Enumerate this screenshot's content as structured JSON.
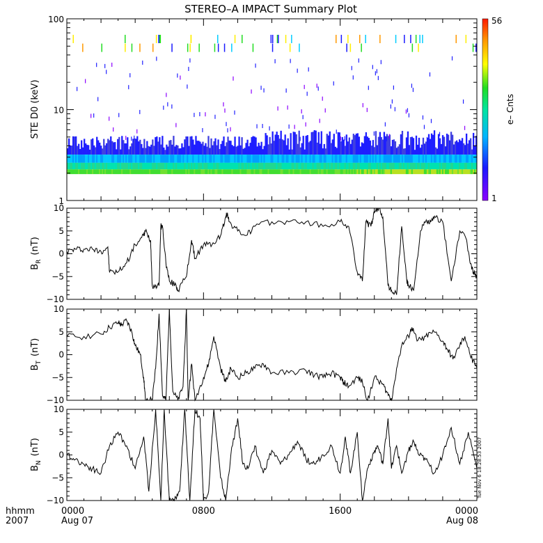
{
  "chart_data": [
    {
      "type": "heatmap",
      "title": "STEREO–A IMPACT Summary Plot",
      "ylabel": "STE D0 (keV)",
      "yscale": "log",
      "ylim": [
        1,
        100
      ],
      "yticks": [
        "1",
        "10",
        "100"
      ],
      "xlim_hours": [
        0,
        24
      ],
      "colorbar": {
        "label": "e– Cnts",
        "min": "1",
        "max": "56"
      },
      "description_levels": {
        "band_low_kev": 1.95,
        "band_high_kev": 5.5,
        "sporadic_high_kev": [
          45,
          60
        ]
      }
    },
    {
      "type": "line",
      "ylabel_main": "B",
      "ylabel_sub": "R",
      "ylabel_unit": "(nT)",
      "ylim": [
        -10,
        10
      ],
      "yticks": [
        "10",
        "5",
        "0",
        "−5",
        "−10"
      ],
      "x": [
        0,
        0.5,
        1,
        1.5,
        2,
        2.4,
        2.5,
        3,
        3.5,
        4,
        4.5,
        4.6,
        4.9,
        5,
        5.4,
        5.5,
        5.6,
        5.8,
        6,
        6.4,
        6.5,
        7,
        7.3,
        7.5,
        8,
        8.5,
        9,
        9.3,
        9.4,
        9.5,
        10,
        10.5,
        11,
        12,
        13,
        14,
        15,
        16,
        16.5,
        17,
        17.3,
        17.5,
        17.8,
        18,
        18.3,
        18.5,
        18.8,
        19,
        19.3,
        19.6,
        19.9,
        20,
        20.3,
        20.7,
        21,
        21.3,
        21.6,
        22,
        22.5,
        23,
        23.4,
        23.6,
        23.8,
        24
      ],
      "y": [
        0.5,
        1,
        1,
        1,
        0.5,
        1.5,
        -4,
        -4,
        -2,
        2,
        4,
        5,
        3,
        -7,
        -7,
        6,
        6,
        -2,
        -6,
        -7,
        -8,
        -5,
        3,
        -1,
        2,
        2,
        4,
        8,
        9,
        7,
        5,
        4,
        6,
        7,
        7,
        7,
        6,
        7,
        6,
        -4,
        -6,
        7,
        6,
        9,
        10,
        8,
        -7,
        -8,
        -9,
        6,
        -6,
        -7,
        -8,
        5,
        7,
        7,
        8,
        7,
        -6,
        5,
        3,
        -2,
        -4,
        -5
      ]
    },
    {
      "type": "line",
      "ylabel_main": "B",
      "ylabel_sub": "T",
      "ylabel_unit": "(nT)",
      "ylim": [
        -10,
        10
      ],
      "yticks": [
        "10",
        "5",
        "0",
        "−5",
        "−10"
      ],
      "x": [
        0,
        1,
        2,
        2.5,
        3,
        3.2,
        3.5,
        3.8,
        4,
        4.3,
        4.5,
        4.6,
        5,
        5.2,
        5.4,
        5.6,
        5.8,
        6,
        6.2,
        6.5,
        6.8,
        7,
        7.1,
        7.3,
        7.5,
        8,
        8.3,
        8.6,
        9,
        9.3,
        9.6,
        10,
        10.5,
        11,
        11.5,
        12,
        13,
        14,
        14.5,
        15,
        15.5,
        16,
        16.2,
        16.5,
        17,
        17.3,
        17.6,
        18,
        18.4,
        18.7,
        19,
        19.3,
        19.6,
        20,
        20.2,
        20.5,
        21,
        21.5,
        22,
        22.3,
        22.6,
        23,
        23.3,
        23.6,
        24
      ],
      "y": [
        4,
        4,
        4.5,
        6,
        7,
        6.5,
        7.5,
        5,
        2,
        0,
        -5,
        -10,
        -10,
        -3,
        9,
        -9,
        -10,
        10,
        -8,
        -10,
        -7,
        10,
        -10,
        -2,
        -10,
        -5,
        -2,
        4,
        -3,
        -6,
        -3,
        -5,
        -4,
        -3,
        -2,
        -4,
        -4,
        -3.5,
        -4.5,
        -5,
        -4,
        -5,
        -6,
        -7,
        -5,
        -6,
        -10,
        -5,
        -6,
        -8,
        -10,
        -3,
        2,
        4,
        6,
        3,
        4,
        5,
        3,
        1,
        -1,
        2,
        4,
        0,
        -3
      ]
    },
    {
      "type": "line",
      "ylabel_main": "B",
      "ylabel_sub": "N",
      "ylabel_unit": "(nT)",
      "ylim": [
        -10,
        10
      ],
      "yticks": [
        "10",
        "5",
        "0",
        "−5",
        "−10"
      ],
      "x": [
        0,
        0.5,
        1,
        1.5,
        2,
        2.5,
        3,
        3.5,
        4,
        4.5,
        4.8,
        5.2,
        5.5,
        5.7,
        6,
        6.3,
        6.6,
        6.9,
        7.2,
        7.5,
        7.8,
        8,
        8.3,
        8.6,
        9,
        9.3,
        9.6,
        10,
        10.3,
        10.6,
        11,
        11.5,
        12,
        12.5,
        13,
        13.5,
        14,
        14.5,
        15,
        15.5,
        16,
        16.3,
        16.6,
        17,
        17.3,
        17.6,
        17.9,
        18.2,
        18.5,
        18.8,
        19,
        19.3,
        19.6,
        20,
        20.3,
        20.6,
        21,
        21.5,
        22,
        22.5,
        23,
        23.5,
        24
      ],
      "y": [
        0,
        -1,
        -2,
        -3,
        -4,
        2,
        5,
        2,
        -3,
        4,
        -8,
        10,
        -10,
        10,
        -10,
        -10,
        -8,
        10,
        -10,
        10,
        8,
        -10,
        -8,
        10,
        -5,
        -10,
        0,
        8,
        -2,
        -3,
        2,
        -4,
        1,
        -2,
        0,
        3,
        -1,
        -2,
        0,
        2,
        -4,
        4,
        -4,
        5,
        -10,
        -3,
        0,
        2,
        -2,
        8,
        -3,
        2,
        -4,
        1,
        3,
        0,
        -1,
        -4,
        0,
        6,
        -2,
        5,
        -3
      ]
    }
  ],
  "xaxis": {
    "ticks": [
      {
        "hour": 0,
        "label": "0000",
        "sublabel": "Aug 07"
      },
      {
        "hour": 8,
        "label": "0800",
        "sublabel": ""
      },
      {
        "hour": 16,
        "label": "1600",
        "sublabel": ""
      },
      {
        "hour": 24,
        "label": "0000",
        "sublabel": "Aug 08"
      }
    ],
    "row_labels": {
      "top": "hhmm",
      "bottom": "2007"
    }
  },
  "timestamp": "Tue Nov  6 18:28:53 2007",
  "colors": {
    "line": "#000000",
    "axes": "#000000",
    "background": "#ffffff"
  }
}
